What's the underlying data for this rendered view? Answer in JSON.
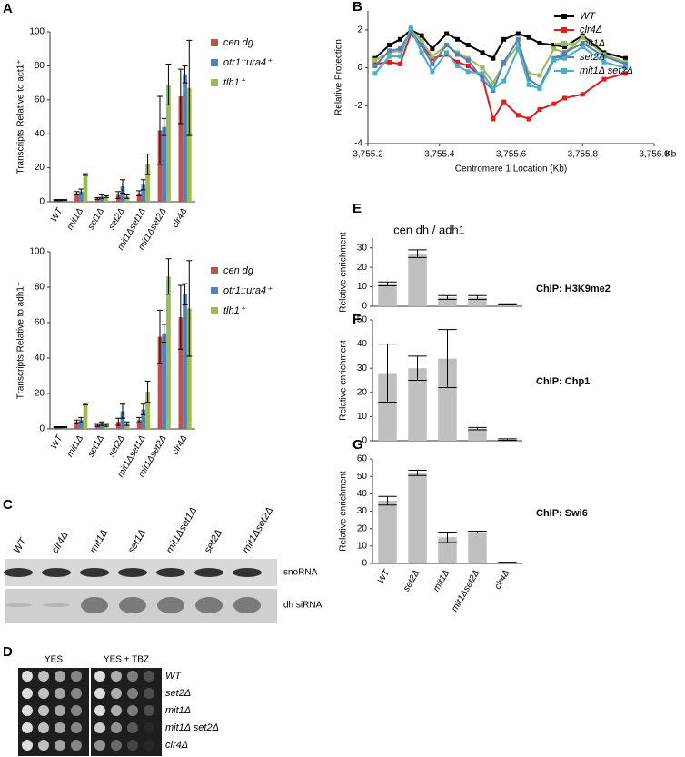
{
  "panels": [
    "A",
    "B",
    "C",
    "D",
    "E",
    "F",
    "G"
  ],
  "chart_data": [
    {
      "type": "bar",
      "ylabel": "Transcripts Relative to act1⁺",
      "categories": [
        "WT",
        "mit1Δ",
        "set1Δ",
        "set2Δ",
        "mit1Δset1Δ",
        "mit1Δset2Δ",
        "clr4Δ"
      ],
      "series": [
        {
          "name": "cen dg",
          "color": "#c0504d",
          "values": [
            1,
            5,
            2,
            4,
            5,
            42,
            62
          ],
          "errors": [
            0.3,
            1,
            0.5,
            2,
            1.5,
            20,
            16
          ]
        },
        {
          "name": "otr1::ura4⁺",
          "color": "#4f81bd",
          "values": [
            1,
            6,
            3,
            9,
            10,
            44,
            75
          ],
          "errors": [
            0.3,
            1.5,
            1,
            4,
            3,
            5,
            5
          ]
        },
        {
          "name": "tlh1⁺",
          "color": "#9bbb59",
          "values": [
            1,
            16,
            3,
            3,
            22,
            69,
            67
          ],
          "errors": [
            0.3,
            0.5,
            0.5,
            1,
            6,
            12,
            28
          ]
        }
      ],
      "ylim": [
        0,
        100
      ],
      "yticks": [
        0,
        20,
        40,
        60,
        80,
        100
      ]
    },
    {
      "type": "bar",
      "ylabel": "Transcripts Relative to adh1⁺",
      "categories": [
        "WT",
        "mit1Δ",
        "set1Δ",
        "set2Δ",
        "mit1Δset1Δ",
        "mit1Δset2Δ",
        "clr4Δ"
      ],
      "series": [
        {
          "name": "cen dg",
          "color": "#c0504d",
          "values": [
            1,
            4,
            2,
            4,
            5,
            52,
            63
          ],
          "errors": [
            0.3,
            1,
            0.5,
            2,
            1.5,
            15,
            18
          ]
        },
        {
          "name": "otr1::ura4⁺",
          "color": "#4f81bd",
          "values": [
            1,
            5,
            3,
            10,
            11,
            54,
            76
          ],
          "errors": [
            0.3,
            1.5,
            1,
            4,
            3,
            5,
            6
          ]
        },
        {
          "name": "tlh1⁺",
          "color": "#9bbb59",
          "values": [
            1,
            14,
            2,
            3,
            21,
            86,
            68
          ],
          "errors": [
            0.3,
            0.5,
            0.5,
            1,
            6,
            10,
            27
          ]
        }
      ],
      "ylim": [
        0,
        100
      ],
      "yticks": [
        0,
        20,
        40,
        60,
        80,
        100
      ]
    },
    {
      "type": "line",
      "ylabel": "Relative Protection",
      "xlabel": "Centromere 1 Location (Kb)",
      "x_unit": "Kb",
      "x": [
        3755.22,
        3755.26,
        3755.29,
        3755.32,
        3755.35,
        3755.38,
        3755.42,
        3755.45,
        3755.48,
        3755.52,
        3755.55,
        3755.58,
        3755.62,
        3755.65,
        3755.68,
        3755.72,
        3755.75,
        3755.8,
        3755.86,
        3755.92
      ],
      "series": [
        {
          "name": "WT",
          "color": "#000000",
          "values": [
            0.5,
            1.2,
            1.5,
            2.0,
            1.7,
            1.0,
            1.8,
            1.5,
            1.2,
            0.8,
            0.5,
            1.5,
            1.8,
            1.6,
            1.3,
            1.2,
            1.1,
            1.7,
            0.8,
            0.5
          ]
        },
        {
          "name": "clr4Δ",
          "color": "#e41a1c",
          "values": [
            0.2,
            0.3,
            0.2,
            1.8,
            1.2,
            0.5,
            0.7,
            0.3,
            0.1,
            -0.5,
            -2.7,
            -1.8,
            -2.5,
            -2.7,
            -2.2,
            -1.9,
            -1.6,
            -1.4,
            -0.6,
            -0.3
          ]
        },
        {
          "name": "mit1Δ",
          "color": "#9bbb59",
          "values": [
            0.4,
            0.8,
            0.9,
            2.0,
            1.4,
            0.6,
            1.2,
            0.8,
            0.5,
            0.0,
            -0.8,
            0.2,
            1.2,
            -0.3,
            -0.4,
            1.0,
            0.8,
            1.6,
            0.7,
            0.3
          ]
        },
        {
          "name": "set2Δ",
          "color": "#4f81bd",
          "values": [
            0.1,
            0.9,
            1.0,
            1.9,
            1.2,
            0.2,
            1.2,
            0.7,
            0.4,
            -0.6,
            -1.2,
            0.3,
            1.5,
            -0.6,
            -1.0,
            0.5,
            0.8,
            1.3,
            0.6,
            0.2
          ]
        },
        {
          "name": "mit1Δ set2Δ",
          "color": "#4bacc6",
          "values": [
            -0.3,
            0.6,
            0.6,
            2.1,
            0.8,
            -0.2,
            0.8,
            0.1,
            -0.2,
            -0.3,
            -1.1,
            -0.7,
            1.0,
            -0.9,
            -1.1,
            0.4,
            0.5,
            1.1,
            0.3,
            0.0
          ]
        }
      ],
      "xlim": [
        3755.2,
        3756.0
      ],
      "xticks": [
        {
          "value": 3755.2,
          "label": "3,755.2"
        },
        {
          "value": 3755.4,
          "label": "3,755.4"
        },
        {
          "value": 3755.6,
          "label": "3,755.6"
        },
        {
          "value": 3755.8,
          "label": "3,755.8"
        },
        {
          "value": 3756.0,
          "label": "3,756.0"
        }
      ],
      "ylim": [
        -4,
        3
      ],
      "yticks": [
        -4,
        -2,
        0,
        2
      ]
    },
    {
      "type": "bar",
      "title": "cen dh / adh1",
      "ylabel": "Relative enrichment",
      "annotation": "ChIP: H3K9me2",
      "categories": [
        null,
        null,
        null,
        null,
        null
      ],
      "series": [
        {
          "color": "#bfbfbf",
          "values": [
            11.5,
            27,
            4.5,
            4.5,
            1
          ],
          "errors": [
            1,
            2,
            1,
            1,
            0.3
          ]
        }
      ],
      "ylim": [
        0,
        35
      ],
      "yticks": [
        0,
        10,
        20,
        30
      ]
    },
    {
      "type": "bar",
      "ylabel": "Relative enrichment",
      "annotation": "ChIP: Chp1",
      "categories": [
        null,
        null,
        null,
        null,
        null
      ],
      "series": [
        {
          "color": "#bfbfbf",
          "values": [
            28,
            30,
            34,
            5,
            0.5
          ],
          "errors": [
            12,
            5,
            12,
            0.5,
            0.3
          ]
        }
      ],
      "ylim": [
        0,
        50
      ],
      "yticks": [
        0,
        10,
        20,
        30,
        40,
        50
      ]
    },
    {
      "type": "bar",
      "ylabel": "Relative enrichment",
      "annotation": "ChIP: Swi6",
      "categories": [
        "WT",
        "set2Δ",
        "mit1Δ",
        "mit1Δset2Δ",
        "clr4Δ"
      ],
      "series": [
        {
          "color": "#bfbfbf",
          "values": [
            36,
            52,
            15,
            18,
            0.5
          ],
          "errors": [
            2.5,
            1.5,
            3,
            0.5,
            0.2
          ]
        }
      ],
      "ylim": [
        0,
        60
      ],
      "yticks": [
        0,
        10,
        20,
        30,
        40,
        50,
        60
      ]
    }
  ],
  "blot": {
    "lanes": [
      "WT",
      "clr4Δ",
      "mit1Δ",
      "set1Δ",
      "mit1Δset1Δ",
      "set2Δ",
      "mit1Δset2Δ"
    ],
    "bands": [
      "snoRNA",
      "dh siRNA"
    ]
  },
  "spot_assay": {
    "media": [
      "YES",
      "YES + TBZ"
    ],
    "strains": [
      "WT",
      "set2Δ",
      "mit1Δ",
      "mit1Δ set2Δ",
      "clr4Δ"
    ]
  }
}
